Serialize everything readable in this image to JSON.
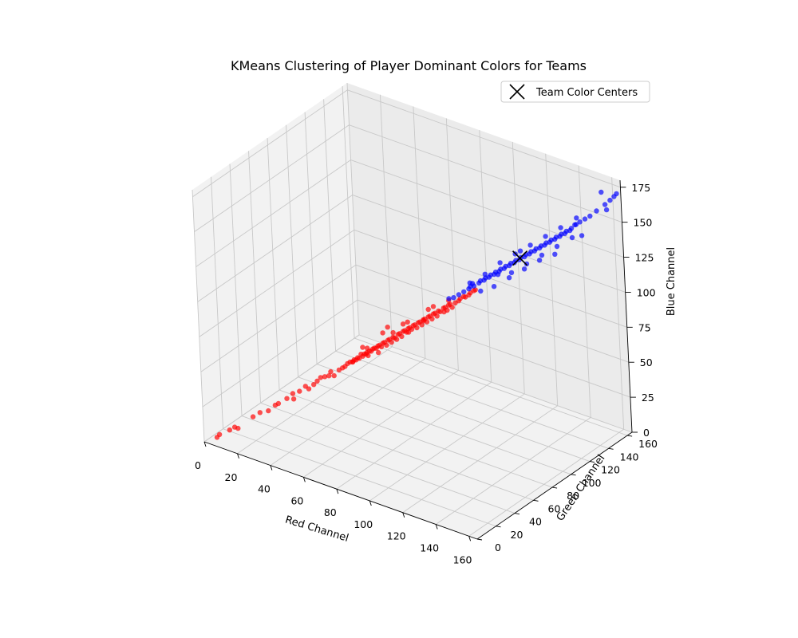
{
  "chart_data": {
    "type": "scatter3d",
    "title": "KMeans Clustering of Player Dominant Colors for Teams",
    "xlabel": "Red Channel",
    "ylabel": "Green Channel",
    "zlabel": "Blue Channel",
    "xlim": [
      0,
      165
    ],
    "ylim": [
      0,
      165
    ],
    "zlim": [
      0,
      180
    ],
    "xticks": [
      0,
      20,
      40,
      60,
      80,
      100,
      120,
      140,
      160
    ],
    "yticks": [
      0,
      20,
      40,
      60,
      80,
      100,
      120,
      140,
      160
    ],
    "zticks": [
      0,
      25,
      50,
      75,
      100,
      125,
      150,
      175
    ],
    "grid": true,
    "legend": {
      "placement": "top-right",
      "entries": [
        "Team Color Centers"
      ]
    },
    "colors": {
      "team1": "#ff0000",
      "team2": "#0000ff",
      "center": "#000000"
    },
    "series": [
      {
        "color": "#ff0000",
        "points": [
          [
            5,
            5,
            3
          ],
          [
            6,
            6,
            5
          ],
          [
            10,
            10,
            8
          ],
          [
            12,
            12,
            10
          ],
          [
            14,
            12,
            10
          ],
          [
            20,
            18,
            18
          ],
          [
            22,
            22,
            20
          ],
          [
            26,
            24,
            22
          ],
          [
            28,
            28,
            25
          ],
          [
            30,
            28,
            27
          ],
          [
            33,
            32,
            30
          ],
          [
            35,
            35,
            33
          ],
          [
            36,
            34,
            30
          ],
          [
            38,
            37,
            35
          ],
          [
            40,
            40,
            38
          ],
          [
            42,
            40,
            37
          ],
          [
            44,
            42,
            40
          ],
          [
            45,
            44,
            42
          ],
          [
            46,
            46,
            44
          ],
          [
            48,
            47,
            45
          ],
          [
            50,
            48,
            46
          ],
          [
            50,
            50,
            48
          ],
          [
            52,
            50,
            46
          ],
          [
            54,
            52,
            50
          ],
          [
            55,
            54,
            51
          ],
          [
            56,
            55,
            52
          ],
          [
            57,
            56,
            54
          ],
          [
            58,
            57,
            55
          ],
          [
            59,
            58,
            55
          ],
          [
            60,
            58,
            57
          ],
          [
            60,
            60,
            56
          ],
          [
            61,
            60,
            58
          ],
          [
            62,
            60,
            58
          ],
          [
            62,
            62,
            60
          ],
          [
            63,
            62,
            59
          ],
          [
            64,
            62,
            61
          ],
          [
            64,
            64,
            60
          ],
          [
            65,
            63,
            62
          ],
          [
            66,
            64,
            63
          ],
          [
            66,
            66,
            62
          ],
          [
            67,
            66,
            64
          ],
          [
            68,
            66,
            65
          ],
          [
            68,
            68,
            64
          ],
          [
            69,
            68,
            66
          ],
          [
            70,
            68,
            67
          ],
          [
            70,
            70,
            65
          ],
          [
            71,
            70,
            68
          ],
          [
            72,
            70,
            69
          ],
          [
            72,
            72,
            66
          ],
          [
            73,
            72,
            70
          ],
          [
            74,
            72,
            71
          ],
          [
            74,
            74,
            68
          ],
          [
            75,
            74,
            72
          ],
          [
            76,
            74,
            72
          ],
          [
            76,
            76,
            70
          ],
          [
            77,
            76,
            74
          ],
          [
            78,
            76,
            75
          ],
          [
            78,
            78,
            72
          ],
          [
            79,
            78,
            76
          ],
          [
            80,
            78,
            77
          ],
          [
            80,
            80,
            75
          ],
          [
            81,
            80,
            78
          ],
          [
            82,
            80,
            79
          ],
          [
            82,
            82,
            77
          ],
          [
            83,
            82,
            80
          ],
          [
            84,
            82,
            81
          ],
          [
            84,
            84,
            78
          ],
          [
            85,
            84,
            82
          ],
          [
            86,
            84,
            83
          ],
          [
            86,
            86,
            80
          ],
          [
            87,
            86,
            84
          ],
          [
            88,
            86,
            85
          ],
          [
            88,
            88,
            82
          ],
          [
            89,
            88,
            86
          ],
          [
            90,
            88,
            87
          ],
          [
            90,
            90,
            84
          ],
          [
            91,
            90,
            88
          ],
          [
            92,
            90,
            89
          ],
          [
            92,
            92,
            86
          ],
          [
            93,
            92,
            90
          ],
          [
            94,
            92,
            90
          ],
          [
            95,
            94,
            92
          ],
          [
            96,
            94,
            93
          ],
          [
            96,
            96,
            90
          ],
          [
            97,
            96,
            94
          ],
          [
            98,
            96,
            95
          ],
          [
            98,
            98,
            92
          ],
          [
            100,
            98,
            96
          ],
          [
            101,
            100,
            97
          ],
          [
            102,
            100,
            99
          ],
          [
            103,
            102,
            100
          ],
          [
            104,
            102,
            100
          ],
          [
            105,
            104,
            101
          ],
          [
            106,
            104,
            103
          ],
          [
            107,
            106,
            104
          ],
          [
            108,
            106,
            105
          ],
          [
            58,
            60,
            54
          ],
          [
            66,
            62,
            66
          ],
          [
            74,
            76,
            74
          ],
          [
            82,
            78,
            84
          ],
          [
            86,
            88,
            82
          ],
          [
            70,
            72,
            74
          ],
          [
            64,
            66,
            58
          ],
          [
            78,
            80,
            80
          ],
          [
            90,
            92,
            92
          ],
          [
            94,
            96,
            88
          ],
          [
            62,
            64,
            64
          ],
          [
            72,
            74,
            78
          ],
          [
            80,
            82,
            74
          ],
          [
            88,
            90,
            90
          ],
          [
            96,
            98,
            96
          ],
          [
            68,
            70,
            60
          ]
        ]
      },
      {
        "color": "#0000ff",
        "points": [
          [
            95,
            100,
            96
          ],
          [
            98,
            100,
            98
          ],
          [
            100,
            102,
            100
          ],
          [
            102,
            104,
            102
          ],
          [
            104,
            106,
            104
          ],
          [
            105,
            106,
            106
          ],
          [
            106,
            108,
            106
          ],
          [
            108,
            110,
            108
          ],
          [
            109,
            110,
            110
          ],
          [
            110,
            112,
            110
          ],
          [
            111,
            112,
            112
          ],
          [
            112,
            114,
            112
          ],
          [
            113,
            114,
            114
          ],
          [
            114,
            116,
            114
          ],
          [
            115,
            116,
            116
          ],
          [
            116,
            118,
            116
          ],
          [
            117,
            118,
            118
          ],
          [
            118,
            120,
            118
          ],
          [
            119,
            120,
            120
          ],
          [
            120,
            122,
            120
          ],
          [
            121,
            122,
            122
          ],
          [
            122,
            124,
            122
          ],
          [
            123,
            124,
            124
          ],
          [
            124,
            126,
            124
          ],
          [
            125,
            126,
            126
          ],
          [
            126,
            128,
            126
          ],
          [
            127,
            128,
            128
          ],
          [
            128,
            130,
            128
          ],
          [
            129,
            130,
            130
          ],
          [
            130,
            132,
            130
          ],
          [
            131,
            132,
            132
          ],
          [
            132,
            134,
            132
          ],
          [
            133,
            134,
            134
          ],
          [
            134,
            136,
            134
          ],
          [
            135,
            136,
            136
          ],
          [
            136,
            138,
            136
          ],
          [
            137,
            138,
            138
          ],
          [
            138,
            140,
            138
          ],
          [
            139,
            140,
            140
          ],
          [
            140,
            142,
            140
          ],
          [
            141,
            142,
            142
          ],
          [
            142,
            144,
            142
          ],
          [
            143,
            144,
            144
          ],
          [
            144,
            146,
            144
          ],
          [
            145,
            146,
            146
          ],
          [
            146,
            148,
            148
          ],
          [
            148,
            150,
            150
          ],
          [
            150,
            152,
            152
          ],
          [
            152,
            154,
            154
          ],
          [
            155,
            156,
            158
          ],
          [
            158,
            160,
            162
          ],
          [
            160,
            162,
            165
          ],
          [
            162,
            163,
            168
          ],
          [
            163,
            164,
            170
          ],
          [
            156,
            160,
            170
          ],
          [
            160,
            158,
            160
          ],
          [
            112,
            110,
            116
          ],
          [
            118,
            116,
            124
          ],
          [
            124,
            122,
            130
          ],
          [
            130,
            128,
            136
          ],
          [
            136,
            134,
            142
          ],
          [
            142,
            140,
            148
          ],
          [
            148,
            146,
            150
          ],
          [
            120,
            124,
            114
          ],
          [
            126,
            130,
            120
          ],
          [
            132,
            136,
            126
          ],
          [
            138,
            142,
            132
          ],
          [
            144,
            148,
            138
          ],
          [
            116,
            112,
            108
          ],
          [
            122,
            118,
            114
          ],
          [
            128,
            124,
            120
          ],
          [
            134,
            130,
            126
          ],
          [
            140,
            136,
            130
          ],
          [
            106,
            104,
            110
          ],
          [
            110,
            108,
            104
          ],
          [
            146,
            150,
            152
          ],
          [
            150,
            148,
            142
          ],
          [
            104,
            110,
            106
          ],
          [
            114,
            120,
            112
          ],
          [
            126,
            124,
            132
          ]
        ]
      }
    ],
    "centers": [
      {
        "label": "Team Color Centers",
        "point": [
          125,
          125,
          126
        ]
      }
    ]
  }
}
